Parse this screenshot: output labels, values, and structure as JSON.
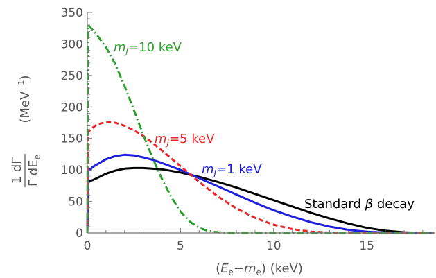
{
  "chart_data": {
    "type": "line",
    "xlabel": {
      "open": "(",
      "E": "E",
      "E_sub": "e",
      "minus": "−",
      "m": "m",
      "m_sub": "e",
      "close": ")",
      "unit": " (keV)"
    },
    "ylabel": {
      "num": "1  dΓ",
      "den": "Γ  dE",
      "den_sub": "e",
      "unit_open": "(MeV",
      "unit_sup": "−1",
      "unit_close": ")"
    },
    "xlim": [
      0,
      18.6
    ],
    "ylim": [
      0,
      350
    ],
    "xticks": [
      0,
      5,
      10,
      15
    ],
    "yticks": [
      0,
      50,
      100,
      150,
      200,
      250,
      300,
      350
    ],
    "annotations": [
      {
        "m": "m",
        "sub": "J",
        "rest": "=10 keV",
        "color": "#2ca02c"
      },
      {
        "m": "m",
        "sub": "J",
        "rest": "=5 keV",
        "color": "#e8262a"
      },
      {
        "m": "m",
        "sub": "J",
        "rest": "=1 keV",
        "color": "#1f1fdc"
      },
      {
        "plain": "Standard ",
        "beta": "β",
        "rest": " decay",
        "color": "#000000"
      }
    ],
    "series": [
      {
        "style": "solid",
        "color": "#000000",
        "x": [
          0,
          0.05,
          0.3,
          1,
          1.5,
          2,
          2.5,
          3,
          4,
          5,
          6,
          7,
          8,
          9,
          10,
          11,
          12,
          13,
          14,
          15,
          16,
          17,
          17.5,
          18,
          18.3,
          18.6
        ],
        "y": [
          0,
          82,
          84,
          94,
          99,
          102,
          103,
          103,
          101,
          96,
          89,
          81,
          72,
          62,
          52,
          42,
          32,
          23,
          15,
          8,
          3.5,
          1,
          0.4,
          0.1,
          0,
          0
        ]
      },
      {
        "style": "solid",
        "color": "#1f1fdc",
        "x": [
          0,
          0.05,
          0.3,
          1,
          1.5,
          2,
          2.5,
          3,
          3.5,
          4,
          5,
          6,
          7,
          8,
          9,
          10,
          11,
          12,
          13,
          14,
          15,
          16,
          17,
          17.5,
          18,
          18.6
        ],
        "y": [
          0,
          98,
          105,
          117,
          122,
          124,
          123,
          120,
          116,
          111,
          100,
          87,
          74,
          61,
          48,
          36,
          26,
          17,
          10,
          5,
          2,
          0.6,
          0.1,
          0,
          0,
          0
        ]
      },
      {
        "style": "dashed",
        "color": "#e8262a",
        "x": [
          0,
          0.05,
          0.2,
          0.5,
          1,
          1.5,
          2,
          2.5,
          3,
          3.5,
          4,
          5,
          6,
          7,
          8,
          9,
          10,
          11,
          12,
          13,
          14,
          14.5,
          18.6
        ],
        "y": [
          0,
          160,
          165,
          172,
          176,
          175,
          170,
          163,
          154,
          143,
          131,
          106,
          81,
          58,
          39,
          24,
          13,
          6,
          2,
          0.5,
          0,
          0,
          0
        ]
      },
      {
        "style": "dashdot",
        "color": "#2ca02c",
        "x": [
          0,
          0.03,
          0.2,
          0.5,
          1,
          1.5,
          2,
          2.5,
          3,
          3.5,
          4,
          4.5,
          5,
          5.5,
          6,
          6.5,
          7,
          7.5,
          8,
          8.5,
          18.6
        ],
        "y": [
          0,
          330,
          325,
          315,
          295,
          268,
          233,
          195,
          156,
          119,
          86,
          57,
          34,
          18,
          8,
          3,
          1,
          0,
          0,
          0,
          0
        ]
      }
    ]
  }
}
